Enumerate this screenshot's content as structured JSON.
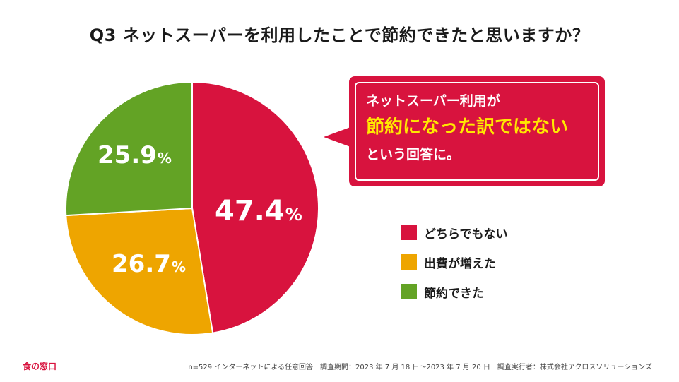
{
  "title": "Q3 ネットスーパーを利用したことで節約できたと思いますか？",
  "chart_data": {
    "type": "pie",
    "title": "Q3 ネットスーパーを利用したことで節約できたと思いますか？",
    "start_angle": "12 o'clock",
    "direction": "clockwise",
    "slices": [
      {
        "label": "どちらでもない",
        "value": 47.4,
        "display": "47.4",
        "color": "#d8133e"
      },
      {
        "label": "出費が増えた",
        "value": 26.7,
        "display": "26.7",
        "color": "#eea500"
      },
      {
        "label": "節約できた",
        "value": 25.9,
        "display": "25.9",
        "color": "#63a325"
      }
    ],
    "unit": "%"
  },
  "callout": {
    "line1": "ネットスーパー利用が",
    "line2": "節約になった訳ではない",
    "line3": "という回答に。",
    "highlight_color": "#ffe800"
  },
  "brand": "食の窓口",
  "footnote": "n=529 インターネットによる任意回答　調査期間：2023 年 7 月 18 日〜2023 年 7 月 20 日　調査実行者：株式会社アクロスソリューションズ"
}
